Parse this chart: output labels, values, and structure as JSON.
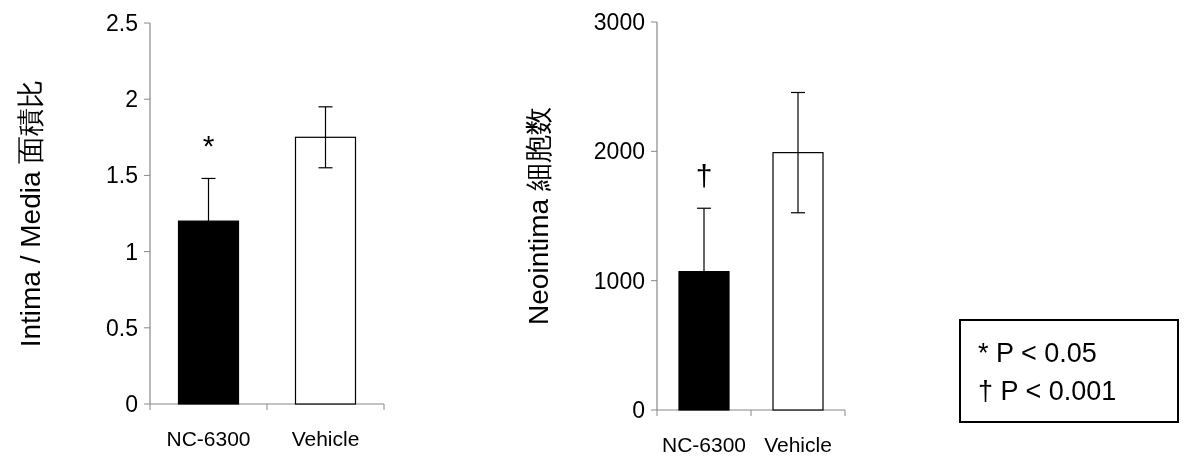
{
  "chart_data": [
    {
      "type": "bar",
      "ylabel": "Intima / Media 面積比",
      "categories": [
        "NC-6300",
        "Vehicle"
      ],
      "values": [
        1.2,
        1.75
      ],
      "colors": [
        "#000000",
        "#ffffff"
      ],
      "errors": [
        0.28,
        0.2
      ],
      "ylim": [
        0,
        2.5
      ],
      "yticks": [
        0,
        0.5,
        1,
        1.5,
        2,
        2.5
      ],
      "annotations": [
        "*"
      ]
    },
    {
      "type": "bar",
      "ylabel": "Neointima 細胞数",
      "categories": [
        "NC-6300",
        "Vehicle"
      ],
      "values": [
        1070,
        1990
      ],
      "colors": [
        "#000000",
        "#ffffff"
      ],
      "errors": [
        490,
        465
      ],
      "ylim": [
        0,
        3000
      ],
      "yticks": [
        0,
        1000,
        2000,
        3000
      ],
      "annotations": [
        "†",
        "* P < 0.05",
        "† P < 0.001"
      ]
    }
  ]
}
